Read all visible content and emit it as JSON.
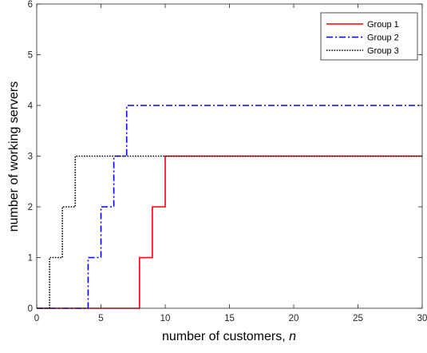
{
  "chart_data": {
    "type": "line",
    "step": true,
    "xlabel": "number of customers, ",
    "xlabel_var": "n",
    "ylabel": "number of working servers",
    "xlim": [
      0,
      30
    ],
    "ylim": [
      0,
      6
    ],
    "xticks": [
      "0",
      "5",
      "10",
      "15",
      "20",
      "25",
      "30"
    ],
    "yticks": [
      "0",
      "1",
      "2",
      "3",
      "4",
      "5",
      "6"
    ],
    "grid": false,
    "legend_position": "top-right",
    "series": [
      {
        "name": "Group 1",
        "color": "#ff0000",
        "style": "solid",
        "x": [
          0,
          8,
          9,
          10,
          30
        ],
        "y": [
          0,
          1,
          2,
          3,
          3
        ]
      },
      {
        "name": "Group 2",
        "color": "#0000ff",
        "style": "dashdot",
        "x": [
          0,
          4,
          5,
          6,
          7,
          30
        ],
        "y": [
          0,
          1,
          2,
          3,
          4,
          4
        ]
      },
      {
        "name": "Group 3",
        "color": "#000000",
        "style": "dotted",
        "x": [
          0,
          1,
          2,
          3,
          30
        ],
        "y": [
          0,
          1,
          2,
          3,
          3
        ]
      }
    ]
  }
}
